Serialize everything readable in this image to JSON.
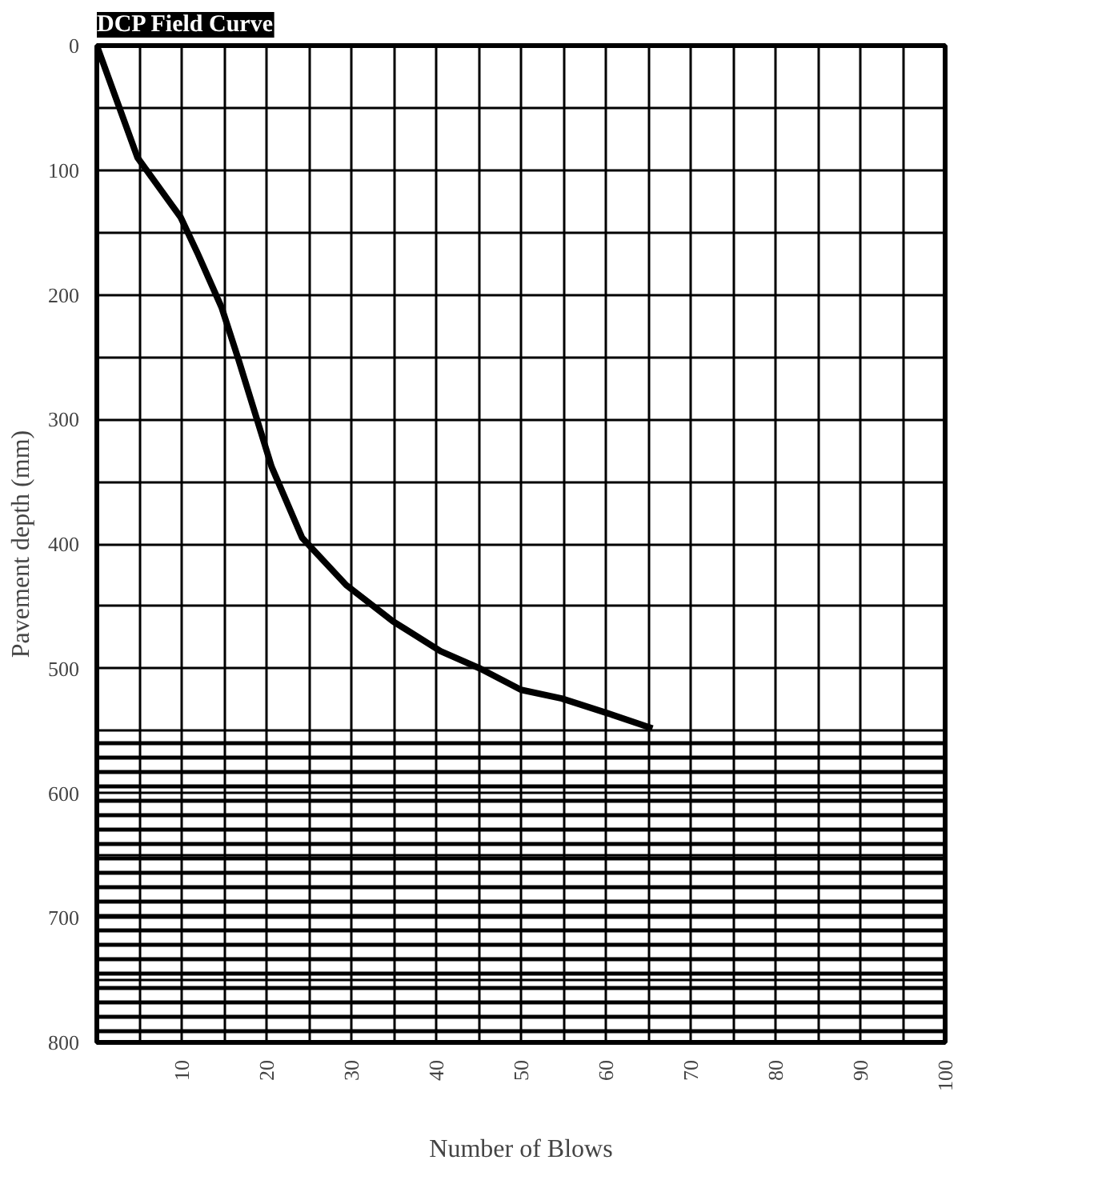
{
  "chart_data": {
    "type": "line",
    "title": "DCP Field Curve",
    "xlabel": "Number of Blows",
    "ylabel": "Pavement depth (mm)",
    "x": [
      0,
      4.8,
      9.9,
      11.9,
      14.7,
      16.7,
      20.6,
      24.2,
      29.4,
      34.9,
      40.5,
      45.2,
      50,
      54.8,
      60.3,
      65.5
    ],
    "series": [
      {
        "color": "#000000",
        "values": [
          0,
          90,
          138,
          167,
          210,
          252,
          338,
          395,
          433,
          462,
          486,
          500,
          517,
          524,
          536,
          548
        ]
      }
    ],
    "xlim": [
      0,
      100
    ],
    "ylim": [
      800,
      0
    ],
    "xticks": [
      {
        "value": 5,
        "label": null
      },
      10,
      {
        "value": 15,
        "label": null
      },
      20,
      {
        "value": 25,
        "label": null
      },
      30,
      {
        "value": 35,
        "label": null
      },
      40,
      {
        "value": 45,
        "label": null
      },
      50,
      {
        "value": 55,
        "label": null
      },
      60,
      {
        "value": 65,
        "label": null
      },
      70,
      {
        "value": 75,
        "label": null
      },
      80,
      {
        "value": 85,
        "label": null
      },
      90,
      {
        "value": 95,
        "label": null
      },
      100
    ],
    "yticks": [
      0,
      {
        "value": 50,
        "label": null
      },
      100,
      {
        "value": 150,
        "label": null
      },
      200,
      {
        "value": 250,
        "label": null
      },
      300,
      {
        "value": 350,
        "label": null
      },
      400,
      {
        "value": 450,
        "label": null
      },
      500,
      {
        "value": 550,
        "label": null
      },
      600,
      {
        "value": 650,
        "label": null
      },
      700,
      {
        "value": 750,
        "label": null
      },
      800
    ],
    "bands": [
      {
        "axis": "y",
        "from": 550,
        "to": 800
      }
    ],
    "grid": true,
    "line_style": "solid",
    "marker": "none"
  }
}
